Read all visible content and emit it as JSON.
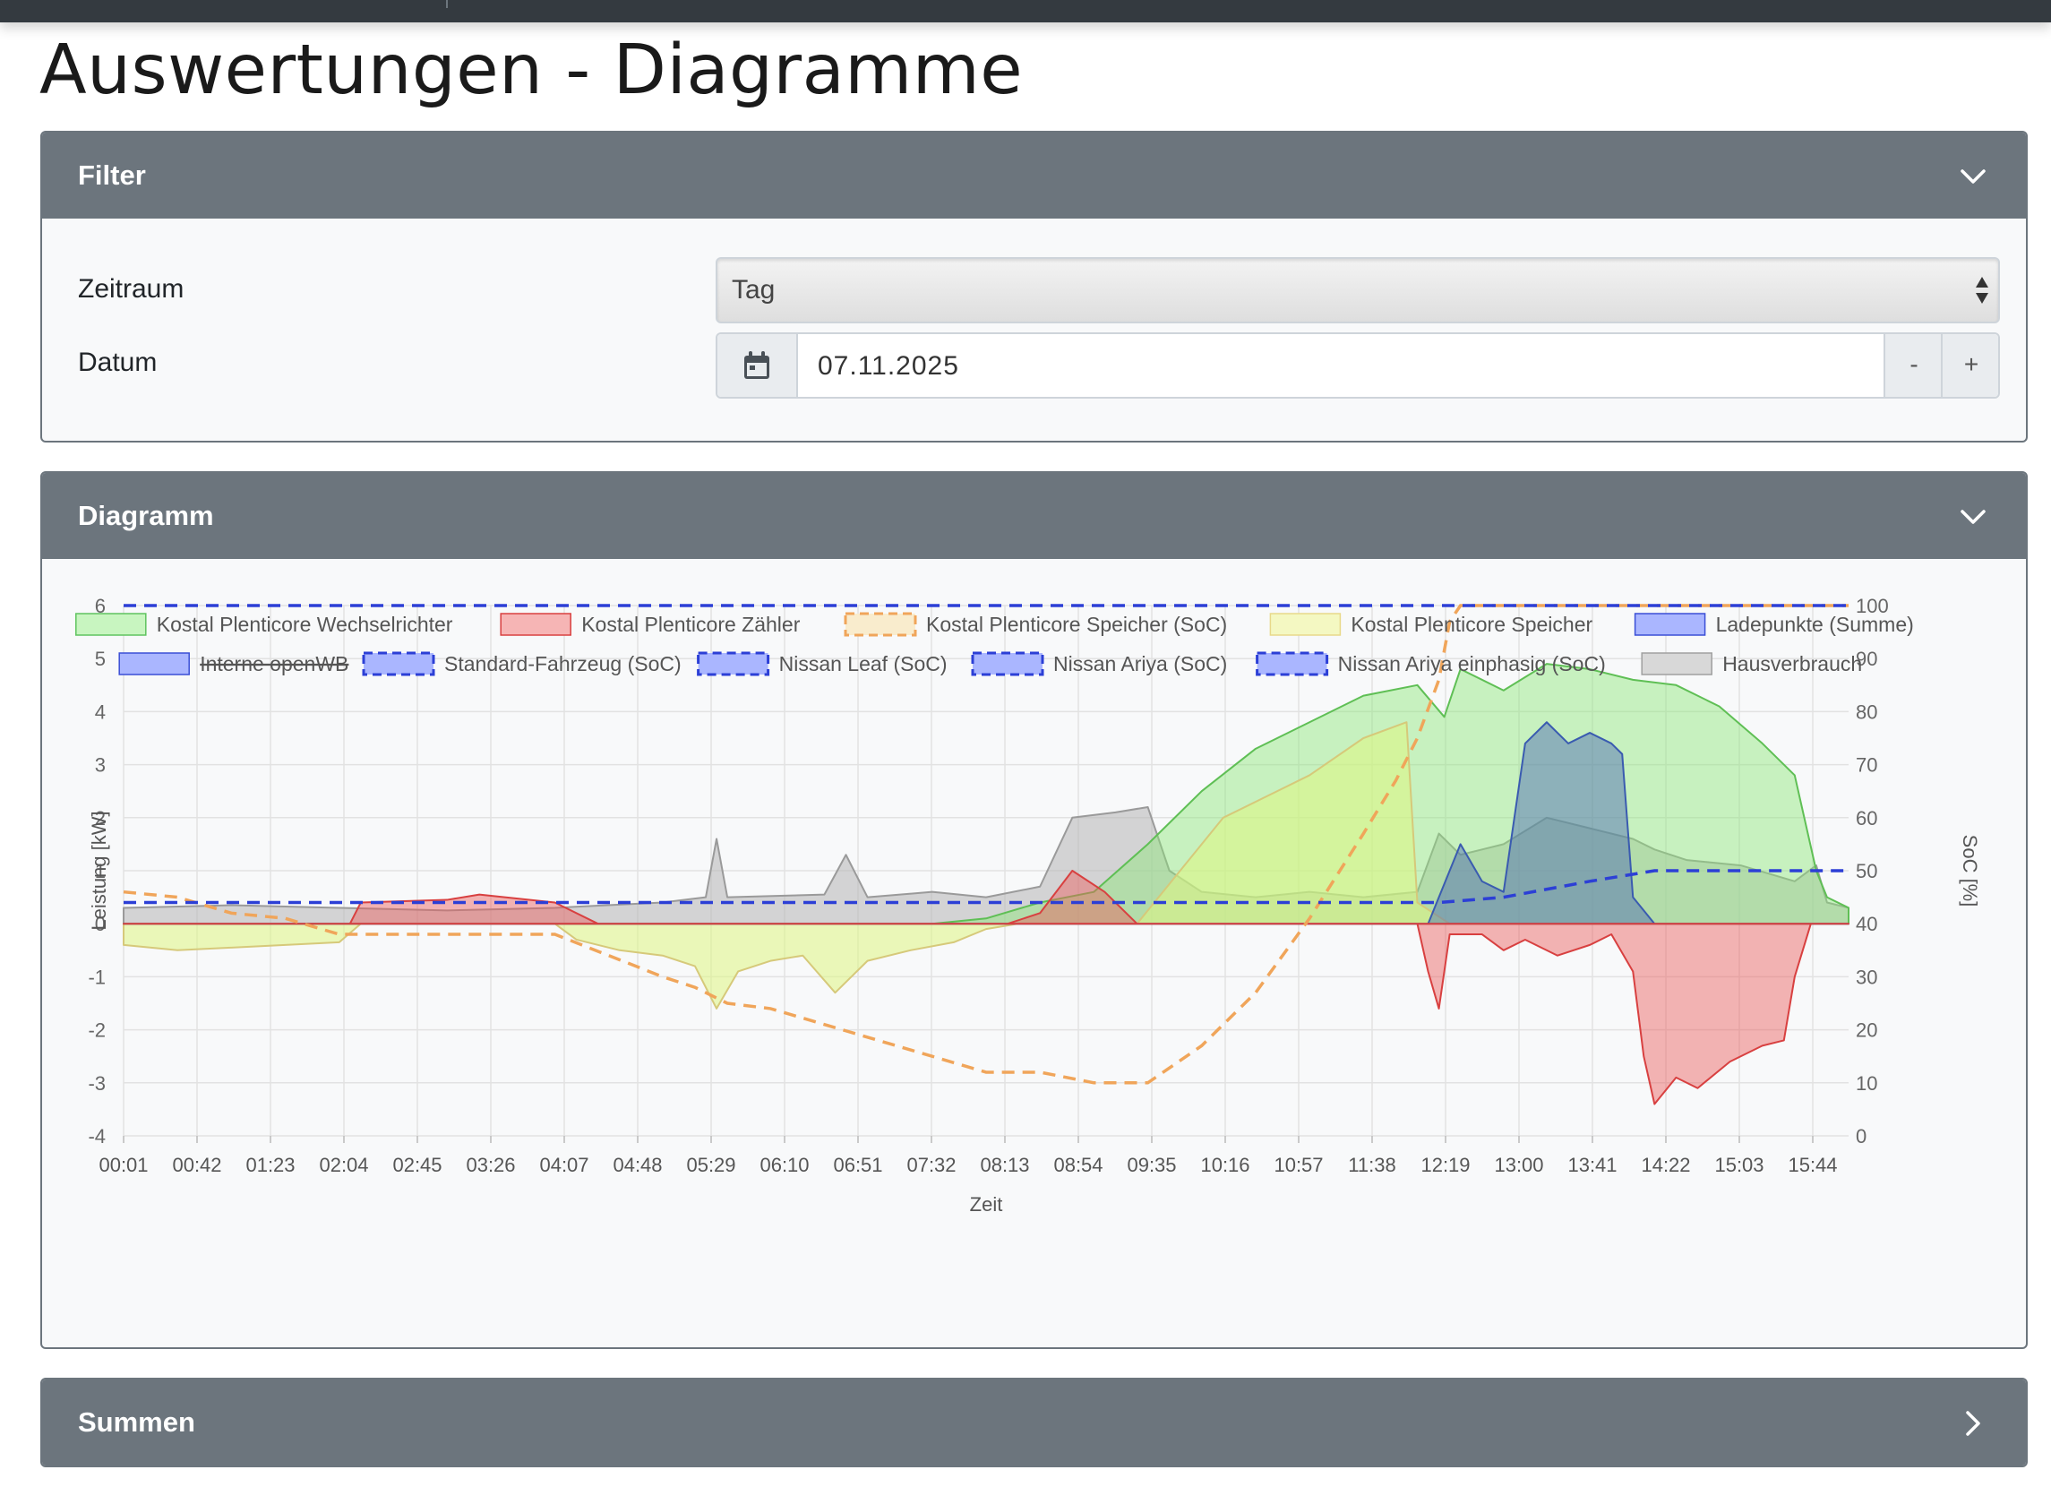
{
  "page": {
    "title": "Auswertungen - Diagramme"
  },
  "filter": {
    "title": "Filter",
    "zeitraum_label": "Zeitraum",
    "zeitraum_value": "Tag",
    "datum_label": "Datum",
    "datum_value": "07.11.2025",
    "minus_label": "-",
    "plus_label": "+"
  },
  "diagramm": {
    "title": "Diagramm"
  },
  "summen": {
    "title": "Summen"
  },
  "chart_data": {
    "type": "area",
    "xlabel": "Zeit",
    "ylabel": "Leistung [kW]",
    "y2label": "SoC [%]",
    "ylim": [
      -4,
      6
    ],
    "y2lim": [
      0,
      100
    ],
    "grid": true,
    "legend_position": "top",
    "x_ticks": [
      "00:01",
      "00:42",
      "01:23",
      "02:04",
      "02:45",
      "03:26",
      "04:07",
      "04:48",
      "05:29",
      "06:10",
      "06:51",
      "07:32",
      "08:13",
      "08:54",
      "09:35",
      "10:16",
      "10:57",
      "11:38",
      "12:19",
      "13:00",
      "13:41",
      "14:22",
      "15:03",
      "15:44"
    ],
    "y_ticks": [
      6,
      5,
      4,
      3,
      2,
      1,
      0,
      -1,
      -2,
      -3,
      -4
    ],
    "y2_ticks": [
      100,
      90,
      80,
      70,
      60,
      50,
      40,
      30,
      20,
      10,
      0
    ],
    "colors": {
      "wechselrichter": "#7ed96b",
      "zaehler": "#e24b4b",
      "speicher_soc": "#f0a55a",
      "speicher": "#dff28c",
      "ladepunkte": "#3a62b8",
      "soc_blue": "#2c3fd6",
      "hausverbrauch": "#a8a8a8"
    },
    "legend": [
      {
        "label": "Kostal Plenticore Wechselrichter",
        "fill": "#c8f5c0",
        "stroke": "#5fc35f",
        "dashed": false,
        "hidden": false
      },
      {
        "label": "Kostal Plenticore Zähler",
        "fill": "#f6b5b5",
        "stroke": "#d94040",
        "dashed": false,
        "hidden": false
      },
      {
        "label": "Kostal Plenticore Speicher (SoC)",
        "fill": "#f9eccd",
        "stroke": "#f0a55a",
        "dashed": true,
        "hidden": false
      },
      {
        "label": "Kostal Plenticore Speicher",
        "fill": "#f4f8c2",
        "stroke": "#e8d98a",
        "dashed": false,
        "hidden": false
      },
      {
        "label": "Ladepunkte (Summe)",
        "fill": "#aab6ff",
        "stroke": "#3b4fd6",
        "dashed": false,
        "hidden": false
      },
      {
        "label": "Interne openWB",
        "fill": "#aab6ff",
        "stroke": "#3b4fd6",
        "dashed": false,
        "hidden": true
      },
      {
        "label": "Standard-Fahrzeug (SoC)",
        "fill": "#aab6ff",
        "stroke": "#2c3fd6",
        "dashed": true,
        "hidden": false
      },
      {
        "label": "Nissan Leaf (SoC)",
        "fill": "#aab6ff",
        "stroke": "#2c3fd6",
        "dashed": true,
        "hidden": false
      },
      {
        "label": "Nissan Ariya (SoC)",
        "fill": "#aab6ff",
        "stroke": "#2c3fd6",
        "dashed": true,
        "hidden": false
      },
      {
        "label": "Nissan Ariya einphasig (SoC)",
        "fill": "#aab6ff",
        "stroke": "#2c3fd6",
        "dashed": true,
        "hidden": false
      },
      {
        "label": "Hausverbrauch",
        "fill": "#d8d8d8",
        "stroke": "#a0a0a0",
        "dashed": false,
        "hidden": false
      }
    ],
    "x_hours": [
      0,
      1,
      2,
      3,
      4,
      5,
      6,
      7,
      8,
      9,
      10,
      11,
      12,
      13,
      14,
      15,
      16
    ],
    "series": [
      {
        "name": "Kostal Plenticore Wechselrichter",
        "axis": "left",
        "points": [
          [
            0.0,
            0
          ],
          [
            7.5,
            0
          ],
          [
            8.0,
            0.1
          ],
          [
            8.5,
            0.4
          ],
          [
            9.0,
            0.6
          ],
          [
            9.5,
            1.5
          ],
          [
            10.0,
            2.5
          ],
          [
            10.5,
            3.3
          ],
          [
            11.0,
            3.8
          ],
          [
            11.5,
            4.3
          ],
          [
            12.0,
            4.5
          ],
          [
            12.25,
            3.9
          ],
          [
            12.4,
            4.8
          ],
          [
            12.8,
            4.4
          ],
          [
            13.2,
            4.9
          ],
          [
            13.6,
            4.8
          ],
          [
            14.0,
            4.6
          ],
          [
            14.4,
            4.5
          ],
          [
            14.8,
            4.1
          ],
          [
            15.2,
            3.4
          ],
          [
            15.5,
            2.8
          ],
          [
            15.7,
            1.0
          ],
          [
            15.8,
            0.5
          ],
          [
            16.0,
            0.3
          ]
        ]
      },
      {
        "name": "Kostal Plenticore Zähler",
        "axis": "left",
        "points": [
          [
            0.0,
            0
          ],
          [
            2.1,
            0
          ],
          [
            2.2,
            0.4
          ],
          [
            3.0,
            0.45
          ],
          [
            3.3,
            0.55
          ],
          [
            4.0,
            0.4
          ],
          [
            4.4,
            0
          ],
          [
            8.2,
            0
          ],
          [
            8.5,
            0.2
          ],
          [
            8.8,
            1.0
          ],
          [
            9.1,
            0.6
          ],
          [
            9.4,
            0
          ],
          [
            12.0,
            0
          ],
          [
            12.1,
            -0.9
          ],
          [
            12.2,
            -1.6
          ],
          [
            12.3,
            -0.2
          ],
          [
            12.6,
            -0.2
          ],
          [
            12.8,
            -0.5
          ],
          [
            13.0,
            -0.3
          ],
          [
            13.3,
            -0.6
          ],
          [
            13.6,
            -0.4
          ],
          [
            13.8,
            -0.2
          ],
          [
            14.0,
            -0.9
          ],
          [
            14.1,
            -2.5
          ],
          [
            14.2,
            -3.4
          ],
          [
            14.4,
            -2.9
          ],
          [
            14.6,
            -3.1
          ],
          [
            14.9,
            -2.6
          ],
          [
            15.2,
            -2.3
          ],
          [
            15.4,
            -2.2
          ],
          [
            15.5,
            -1.0
          ],
          [
            15.65,
            0.0
          ],
          [
            16.0,
            0
          ]
        ]
      },
      {
        "name": "Kostal Plenticore Speicher",
        "axis": "left",
        "points": [
          [
            0.0,
            -0.4
          ],
          [
            0.5,
            -0.5
          ],
          [
            1.0,
            -0.45
          ],
          [
            1.5,
            -0.4
          ],
          [
            2.0,
            -0.35
          ],
          [
            2.2,
            0
          ],
          [
            4.0,
            0
          ],
          [
            4.2,
            -0.3
          ],
          [
            4.6,
            -0.5
          ],
          [
            5.0,
            -0.6
          ],
          [
            5.3,
            -0.8
          ],
          [
            5.5,
            -1.6
          ],
          [
            5.7,
            -0.9
          ],
          [
            6.0,
            -0.7
          ],
          [
            6.3,
            -0.6
          ],
          [
            6.6,
            -1.3
          ],
          [
            6.9,
            -0.7
          ],
          [
            7.3,
            -0.5
          ],
          [
            7.7,
            -0.35
          ],
          [
            8.0,
            -0.1
          ],
          [
            8.3,
            0
          ],
          [
            9.4,
            0
          ],
          [
            9.8,
            1.0
          ],
          [
            10.2,
            2.0
          ],
          [
            10.6,
            2.4
          ],
          [
            11.0,
            2.8
          ],
          [
            11.5,
            3.5
          ],
          [
            11.9,
            3.8
          ],
          [
            12.0,
            0.4
          ],
          [
            12.3,
            0
          ],
          [
            16.0,
            0
          ]
        ]
      },
      {
        "name": "Ladepunkte (Summe)",
        "axis": "left",
        "points": [
          [
            0.0,
            0
          ],
          [
            12.1,
            0
          ],
          [
            12.4,
            1.5
          ],
          [
            12.6,
            0.8
          ],
          [
            12.8,
            0.6
          ],
          [
            13.0,
            3.4
          ],
          [
            13.2,
            3.8
          ],
          [
            13.4,
            3.4
          ],
          [
            13.6,
            3.6
          ],
          [
            13.8,
            3.4
          ],
          [
            13.9,
            3.2
          ],
          [
            14.0,
            0.5
          ],
          [
            14.2,
            0
          ],
          [
            16.0,
            0
          ]
        ]
      },
      {
        "name": "Hausverbrauch",
        "axis": "left",
        "points": [
          [
            0.0,
            0.3
          ],
          [
            1.0,
            0.35
          ],
          [
            2.0,
            0.3
          ],
          [
            3.0,
            0.25
          ],
          [
            4.0,
            0.3
          ],
          [
            5.0,
            0.4
          ],
          [
            5.4,
            0.5
          ],
          [
            5.5,
            1.6
          ],
          [
            5.6,
            0.5
          ],
          [
            6.5,
            0.55
          ],
          [
            6.7,
            1.3
          ],
          [
            6.9,
            0.5
          ],
          [
            7.5,
            0.6
          ],
          [
            8.0,
            0.5
          ],
          [
            8.5,
            0.7
          ],
          [
            8.8,
            2.0
          ],
          [
            9.2,
            2.1
          ],
          [
            9.5,
            2.2
          ],
          [
            9.7,
            1.0
          ],
          [
            10.0,
            0.6
          ],
          [
            10.5,
            0.5
          ],
          [
            11.0,
            0.6
          ],
          [
            11.5,
            0.5
          ],
          [
            12.0,
            0.6
          ],
          [
            12.2,
            1.7
          ],
          [
            12.4,
            1.3
          ],
          [
            12.8,
            1.5
          ],
          [
            13.2,
            2.0
          ],
          [
            13.6,
            1.8
          ],
          [
            14.0,
            1.6
          ],
          [
            14.2,
            1.4
          ],
          [
            14.5,
            1.2
          ],
          [
            15.0,
            1.1
          ],
          [
            15.5,
            0.8
          ],
          [
            15.7,
            1.1
          ],
          [
            15.8,
            0.4
          ],
          [
            16.0,
            0.3
          ]
        ]
      },
      {
        "name": "Kostal Plenticore Speicher (SoC)",
        "axis": "right",
        "dashed": true,
        "points": [
          [
            0.0,
            46
          ],
          [
            0.5,
            45
          ],
          [
            1.0,
            42
          ],
          [
            1.5,
            41
          ],
          [
            2.0,
            38
          ],
          [
            3.0,
            38
          ],
          [
            4.0,
            38
          ],
          [
            4.5,
            34
          ],
          [
            5.0,
            30
          ],
          [
            5.3,
            28
          ],
          [
            5.6,
            25
          ],
          [
            6.0,
            24
          ],
          [
            6.5,
            21
          ],
          [
            7.0,
            18
          ],
          [
            7.5,
            15
          ],
          [
            8.0,
            12
          ],
          [
            8.5,
            12
          ],
          [
            9.0,
            10
          ],
          [
            9.5,
            10
          ],
          [
            10.0,
            17
          ],
          [
            10.5,
            27
          ],
          [
            11.0,
            41
          ],
          [
            11.5,
            57
          ],
          [
            11.8,
            67
          ],
          [
            12.0,
            75
          ],
          [
            12.2,
            86
          ],
          [
            12.3,
            97
          ],
          [
            12.4,
            100
          ],
          [
            16.0,
            100
          ]
        ]
      },
      {
        "name": "Nissan Leaf (SoC)",
        "axis": "right",
        "dashed": true,
        "points": [
          [
            0.0,
            100
          ],
          [
            16.0,
            100
          ]
        ]
      },
      {
        "name": "Nissan Ariya (SoC)",
        "axis": "right",
        "dashed": true,
        "points": [
          [
            0.0,
            44
          ],
          [
            12.2,
            44
          ],
          [
            12.8,
            45
          ],
          [
            13.6,
            48
          ],
          [
            14.2,
            50
          ],
          [
            16.0,
            50
          ]
        ]
      }
    ]
  }
}
